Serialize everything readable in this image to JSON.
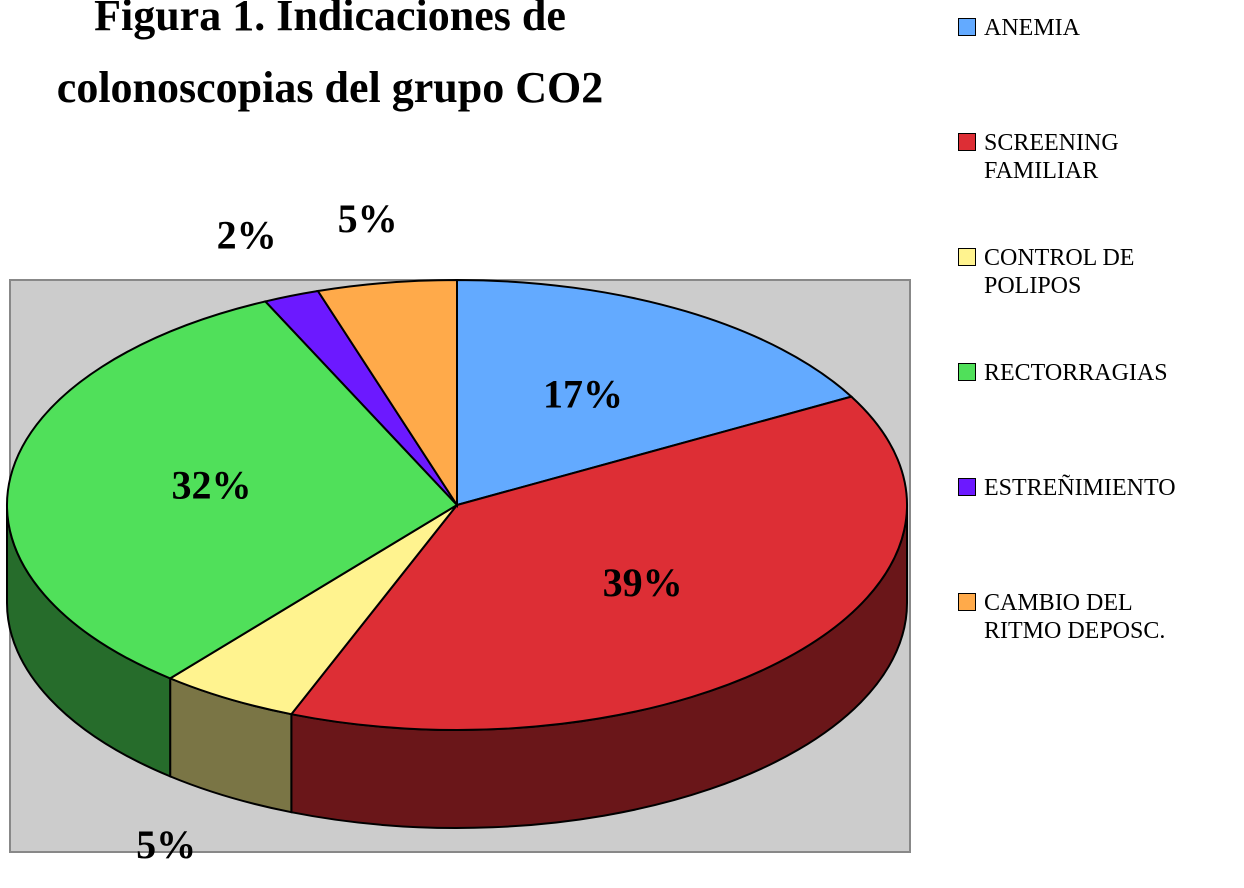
{
  "chart_data": {
    "type": "pie",
    "title": [
      "Figura 1. Indicaciones de",
      "colonoscopias  del grupo CO2"
    ],
    "categories": [
      "ANEMIA",
      "SCREENING FAMILIAR",
      "CONTROL DE POLIPOS",
      "RECTORRAGIAS",
      "ESTREÑIMIENTO",
      "CAMBIO DEL RITMO DEPOSC."
    ],
    "values": [
      17,
      39,
      5,
      32,
      2,
      5
    ],
    "value_labels": [
      "17%",
      "39%",
      "5%",
      "32%",
      "2%",
      "5%"
    ],
    "colors": [
      "#63aaff",
      "#dd2e35",
      "#fff38f",
      "#50e05a",
      "#6c19ff",
      "#ffaa4a"
    ],
    "legend": "right"
  }
}
